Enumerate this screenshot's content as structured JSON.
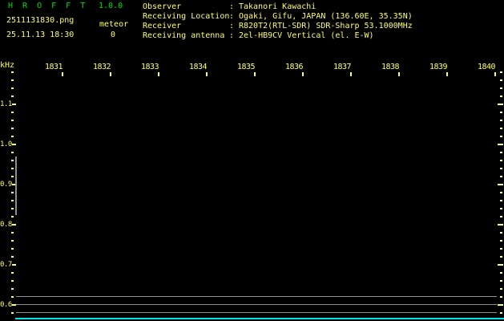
{
  "header": {
    "app_title": "H R O F F T",
    "version": "1.0.0",
    "filename": "2511131830.png",
    "mode": "meteor",
    "datetime": "25.11.13 18:30",
    "count": "0",
    "info_rows": [
      {
        "label": "Observer",
        "sep": ":",
        "value": "Takanori Kawachi"
      },
      {
        "label": "Receiving Location",
        "sep": ":",
        "value": "Ogaki, Gifu, JAPAN (136.60E, 35.35N)"
      },
      {
        "label": "Receiver",
        "sep": ":",
        "value": "R820T2(RTL-SDR) SDR-Sharp 53.1000MHz"
      },
      {
        "label": "Receiving antenna",
        "sep": ":",
        "value": "2el-HB9CV Vertical (el. E-W)"
      }
    ]
  },
  "colors": {
    "background": "#000000",
    "title_green": "#00dd00",
    "text_yellow": "#ffff60",
    "grid_gray": "#909090",
    "baseline_cyan": "#00e5e5"
  },
  "chart_data": {
    "type": "heatmap",
    "title": "",
    "xlabel": "",
    "ylabel": "kHz",
    "x_tick_labels": [
      "1831",
      "1832",
      "1833",
      "1834",
      "1835",
      "1836",
      "1837",
      "1838",
      "1839",
      "1840"
    ],
    "x_start_time": "18:30",
    "x_end_time": "18:40",
    "x_major_step_minutes": 1,
    "y_tick_labels": [
      "1.1",
      "1.0",
      "0.9",
      "0.8",
      "0.7",
      "0.6"
    ],
    "y_major_values_khz": [
      1.1,
      1.0,
      0.9,
      0.8,
      0.7,
      0.6
    ],
    "y_minor_step_khz": 0.02,
    "ylim_khz": [
      0.58,
      1.18
    ],
    "grid": false,
    "legend": "none",
    "echoes": [],
    "overlays": {
      "noise_floor_lines_khz": [
        0.62,
        0.6,
        0.58
      ],
      "start_marker_column": {
        "time": "18:30",
        "khz_from": 0.824,
        "khz_to": 0.97
      },
      "baseline_khz": 0.566
    }
  }
}
